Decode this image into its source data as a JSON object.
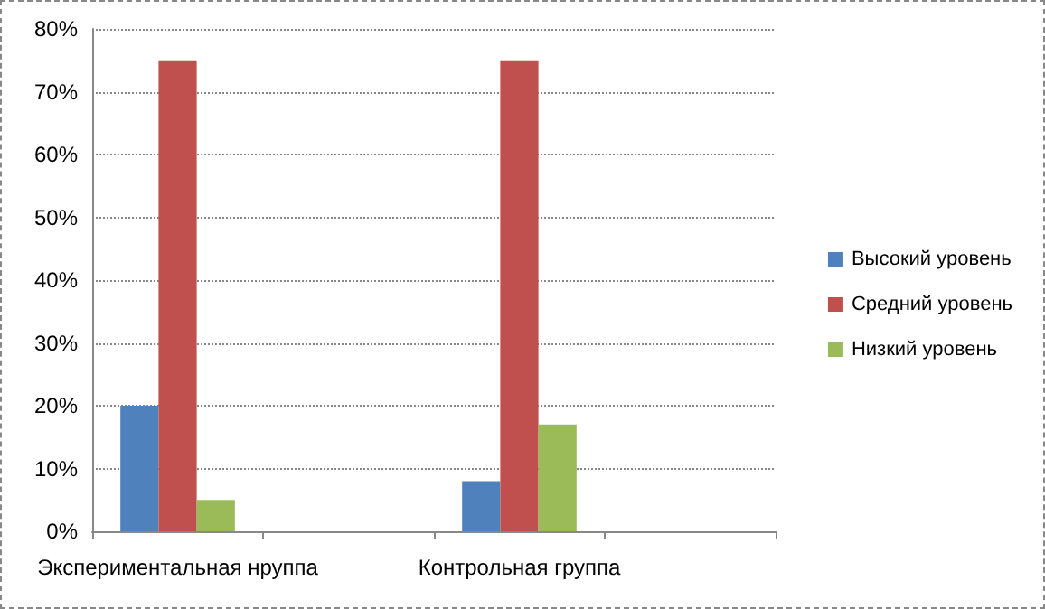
{
  "chart_data": {
    "type": "bar",
    "categories": [
      "Экспериментальная нруппа",
      null,
      "Контрольная группа",
      null
    ],
    "series": [
      {
        "name": "Высокий уровень",
        "color": "#4f81bd",
        "values": [
          20,
          null,
          8,
          null
        ]
      },
      {
        "name": "Средний уровень",
        "color": "#c0504d",
        "values": [
          75,
          null,
          75,
          null
        ]
      },
      {
        "name": "Низкий уровень",
        "color": "#9bbb59",
        "values": [
          5,
          null,
          17,
          null
        ]
      }
    ],
    "ylim": [
      0,
      80
    ],
    "yticks": [
      {
        "value": 0,
        "label": "0%"
      },
      {
        "value": 10,
        "label": "10%"
      },
      {
        "value": 20,
        "label": "20%"
      },
      {
        "value": 30,
        "label": "30%"
      },
      {
        "value": 40,
        "label": "40%"
      },
      {
        "value": 50,
        "label": "50%"
      },
      {
        "value": 60,
        "label": "60%"
      },
      {
        "value": 70,
        "label": "70%"
      },
      {
        "value": 80,
        "label": "80%"
      }
    ],
    "grid": "y",
    "legend": "right"
  }
}
